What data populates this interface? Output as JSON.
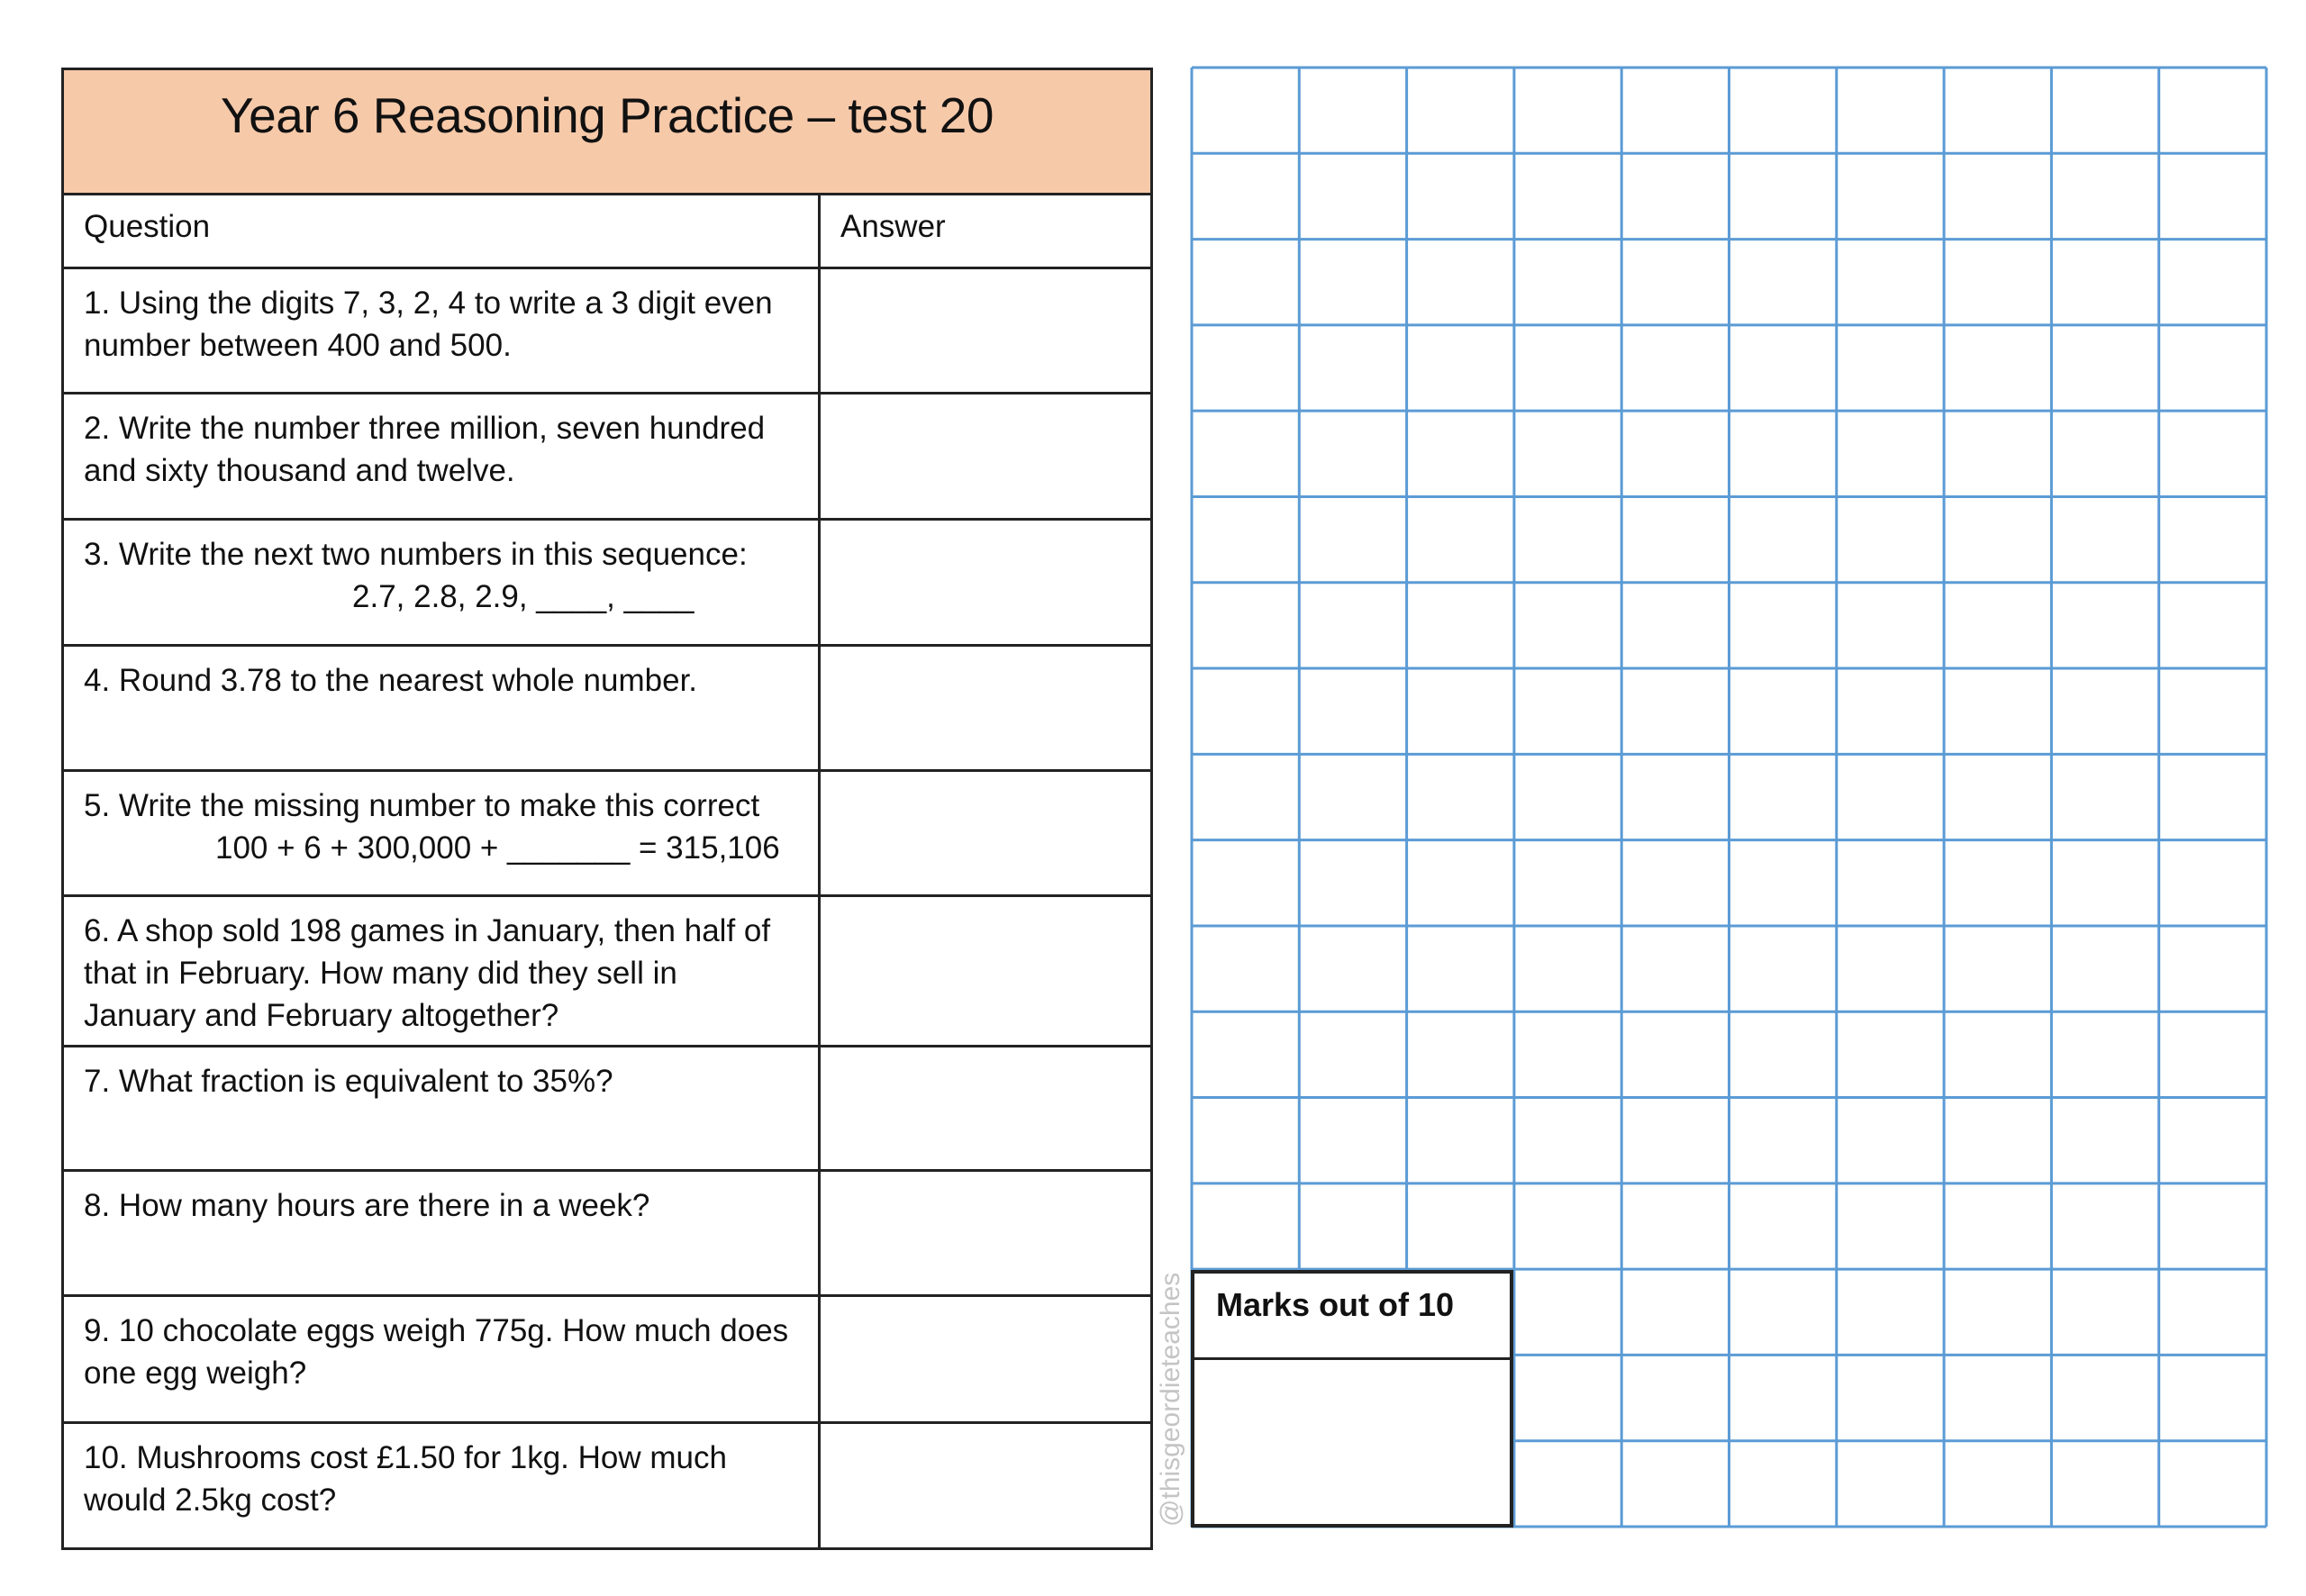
{
  "worksheet": {
    "title": "Year 6 Reasoning Practice – test 20",
    "headers": {
      "question": "Question",
      "answer": "Answer"
    },
    "questions": [
      {
        "lines": [
          "1. Using the digits 7, 3, 2, 4 to write a 3 digit even",
          "number between 400 and 500."
        ],
        "answer": ""
      },
      {
        "lines": [
          "2. Write the number three million, seven hundred",
          "and sixty thousand and twelve."
        ],
        "answer": ""
      },
      {
        "lines": [
          "3. Write the next two numbers in this sequence:",
          "2.7, 2.8, 2.9, ____, ____"
        ],
        "answer": ""
      },
      {
        "lines": [
          "4. Round 3.78 to the nearest whole number."
        ],
        "answer": ""
      },
      {
        "lines": [
          "5. Write the missing number to make this correct",
          "100 + 6 + 300,000 + _______ = 315,106"
        ],
        "answer": ""
      },
      {
        "lines": [
          "6. A shop sold 198 games in January, then half of",
          "that in February. How many did they sell in",
          "January and February altogether?"
        ],
        "answer": ""
      },
      {
        "lines": [
          "7. What fraction is equivalent to 35%?"
        ],
        "answer": ""
      },
      {
        "lines": [
          "8. How many hours are there in a week?"
        ],
        "answer": ""
      },
      {
        "lines": [
          "9. 10 chocolate eggs weigh 775g. How much does",
          "one egg weigh?"
        ],
        "answer": ""
      },
      {
        "lines": [
          "10. Mushrooms cost £1.50 for 1kg. How much",
          "would 2.5kg cost?"
        ],
        "answer": ""
      }
    ]
  },
  "marks": {
    "label": "Marks out of 10",
    "value": ""
  },
  "watermark": "@thisgeordieteaches",
  "colors": {
    "header_bg": "#f6c9a9",
    "grid_line": "#5b9bd5",
    "border": "#222222"
  }
}
